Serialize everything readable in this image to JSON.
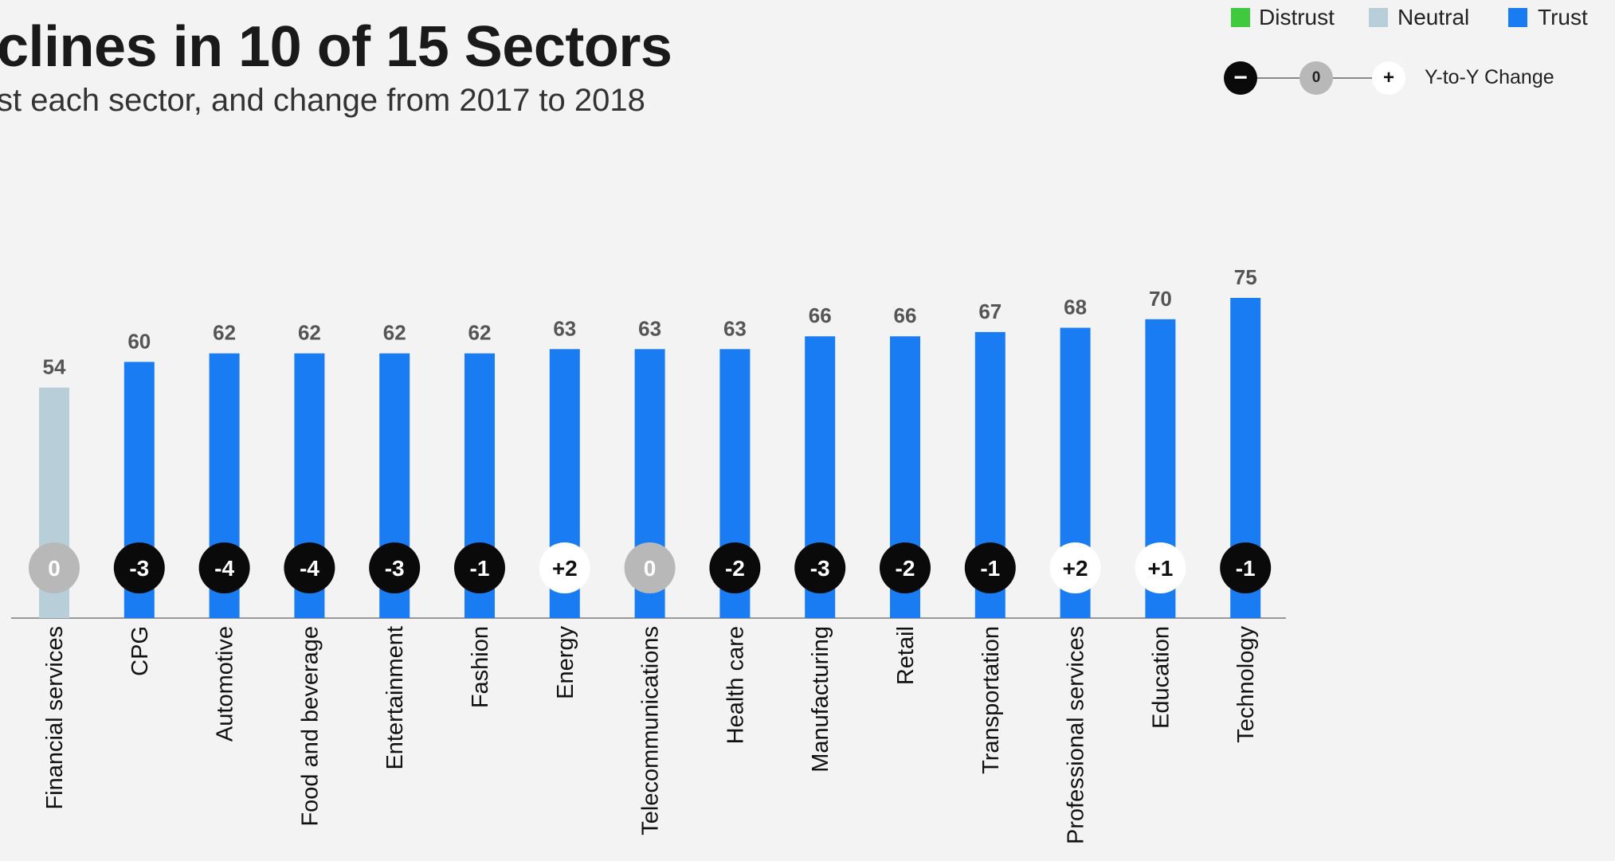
{
  "header": {
    "title": "clines in 10 of 15 Sectors",
    "subtitle": "st each sector, and change from 2017 to 2018"
  },
  "legend": {
    "distrust_label": "Distrust",
    "neutral_label": "Neutral",
    "trust_label": "Trust",
    "yoy_minus": "−",
    "yoy_zero": "0",
    "yoy_plus": "+",
    "yoy_label": "Y-to-Y Change"
  },
  "colors": {
    "distrust": "#3ec93e",
    "neutral": "#b8cfd9",
    "trust": "#1a7cf2",
    "negative_change": "#0a0a0a",
    "zero_change": "#b8b8b8",
    "positive_change": "#ffffff",
    "axis": "#999999",
    "value_label": "#555555"
  },
  "chart_data": {
    "type": "bar",
    "categories": [
      "Financial services",
      "CPG",
      "Automotive",
      "Food and beverage",
      "Entertainment",
      "Fashion",
      "Energy",
      "Telecommunications",
      "Health care",
      "Manufacturing",
      "Retail",
      "Transportation",
      "Professional services",
      "Education",
      "Technology"
    ],
    "values": [
      54,
      60,
      62,
      62,
      62,
      62,
      63,
      63,
      63,
      66,
      66,
      67,
      68,
      70,
      75
    ],
    "categories_class": [
      "Neutral",
      "Trust",
      "Trust",
      "Trust",
      "Trust",
      "Trust",
      "Trust",
      "Trust",
      "Trust",
      "Trust",
      "Trust",
      "Trust",
      "Trust",
      "Trust",
      "Trust"
    ],
    "change_values": [
      0,
      -3,
      -4,
      -4,
      -3,
      -1,
      2,
      0,
      -2,
      -3,
      -2,
      -1,
      2,
      1,
      -1
    ],
    "change_labels": [
      "0",
      "-3",
      "-4",
      "-4",
      "-3",
      "-1",
      "+2",
      "0",
      "-2",
      "-3",
      "-2",
      "-1",
      "+2",
      "+1",
      "-1"
    ],
    "legend": [
      "Distrust",
      "Neutral",
      "Trust"
    ],
    "ylim": [
      0,
      75
    ],
    "grid": false
  }
}
